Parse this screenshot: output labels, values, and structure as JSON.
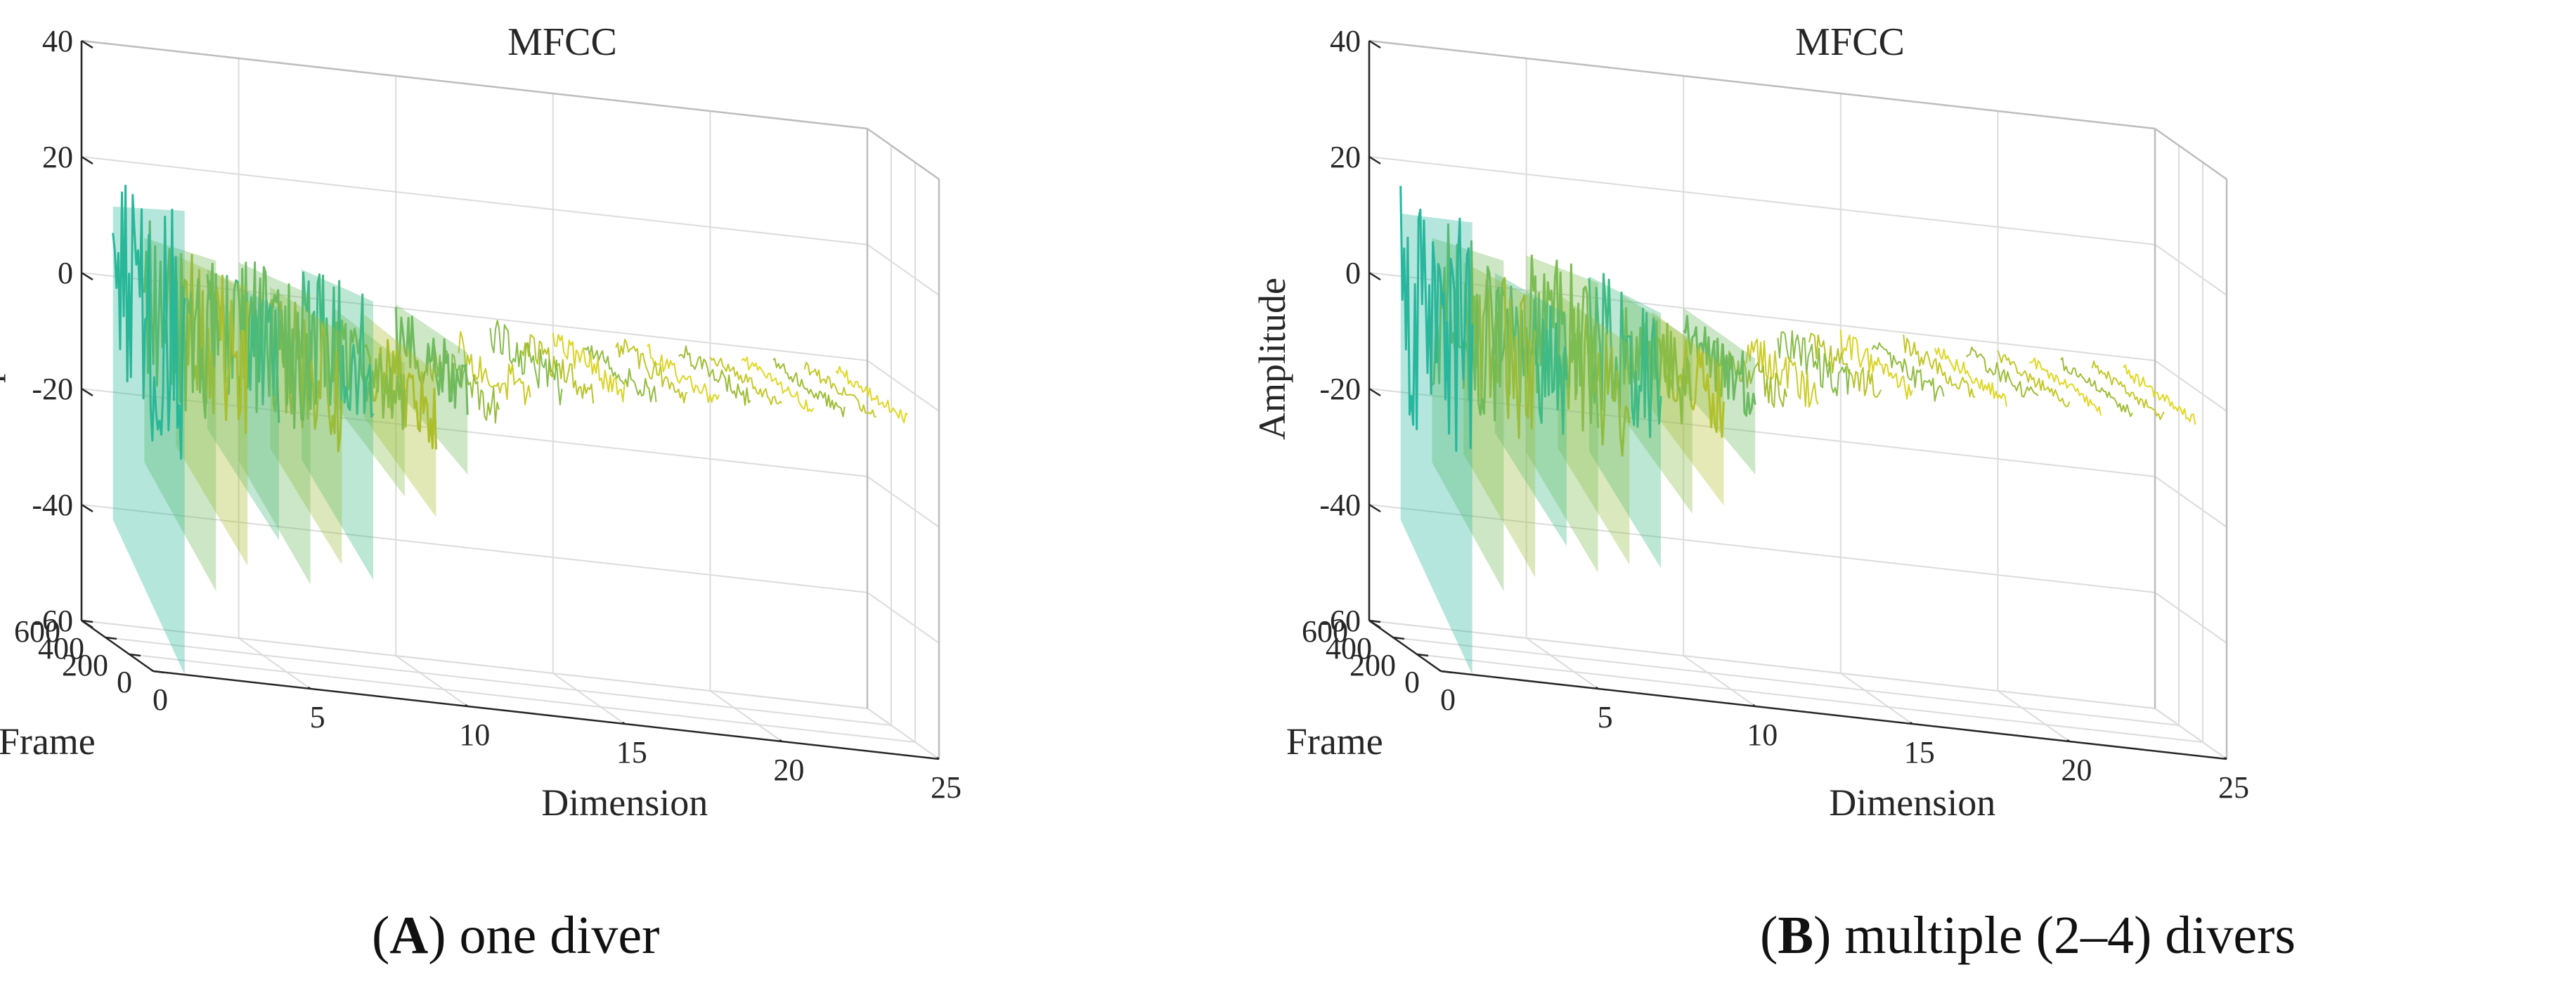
{
  "charts": [
    {
      "caption": {
        "letter": "A",
        "text": "one diver"
      },
      "chart_data": {
        "type": "surface3d",
        "title": "MFCC",
        "xlabel": "Dimension",
        "ylabel": "Frame",
        "zlabel": "Amplitude",
        "xlim": [
          0,
          25
        ],
        "ylim": [
          0,
          600
        ],
        "zlim": [
          -60,
          40
        ],
        "xticks": [
          "0",
          "5",
          "10",
          "15",
          "20",
          "25"
        ],
        "yticks": [
          "0",
          "200",
          "400",
          "600"
        ],
        "zticks": [
          "-60",
          "-40",
          "-20",
          "0",
          "20",
          "40"
        ],
        "grid": true,
        "colormap": "parula",
        "dimension_profile": {
          "dimension": [
            1,
            2,
            3,
            4,
            5,
            6,
            7,
            8,
            9,
            10,
            11,
            12,
            13,
            14,
            15,
            16,
            17,
            18,
            19,
            20,
            21,
            22,
            23,
            24
          ],
          "amplitude_max": [
            20,
            12,
            8,
            5,
            8,
            2,
            8,
            -2,
            -3,
            1,
            -4,
            -2,
            1,
            -1,
            0,
            -1,
            0,
            -1,
            0,
            -1,
            -1,
            -1,
            -1,
            -1
          ],
          "amplitude_min": [
            -60,
            -45,
            -40,
            -35,
            -42,
            -38,
            -40,
            -25,
            -28,
            -20,
            -18,
            -15,
            -13,
            -10,
            -9,
            -8,
            -7,
            -7,
            -6,
            -5,
            -5,
            -5,
            -5,
            -5
          ]
        }
      }
    },
    {
      "caption": {
        "letter": "B",
        "text": "multiple (2–4) divers"
      },
      "chart_data": {
        "type": "surface3d",
        "title": "MFCC",
        "xlabel": "Dimension",
        "ylabel": "Frame",
        "zlabel": "Amplitude",
        "xlim": [
          0,
          25
        ],
        "ylim": [
          0,
          600
        ],
        "zlim": [
          -60,
          40
        ],
        "xticks": [
          "0",
          "5",
          "10",
          "15",
          "20",
          "25"
        ],
        "yticks": [
          "0",
          "200",
          "400",
          "600"
        ],
        "zticks": [
          "-60",
          "-40",
          "-20",
          "0",
          "20",
          "40"
        ],
        "grid": true,
        "colormap": "parula",
        "dimension_profile": {
          "dimension": [
            1,
            2,
            3,
            4,
            5,
            6,
            7,
            8,
            9,
            10,
            11,
            12,
            13,
            14,
            15,
            16,
            17,
            18,
            19,
            20,
            21,
            22,
            23,
            24
          ],
          "amplitude_max": [
            18,
            12,
            6,
            4,
            10,
            0,
            6,
            2,
            -2,
            0,
            -3,
            -2,
            0,
            -1,
            0,
            -1,
            0,
            -1,
            0,
            -1,
            -1,
            -1,
            -1,
            -1
          ],
          "amplitude_min": [
            -60,
            -45,
            -42,
            -36,
            -40,
            -38,
            -38,
            -28,
            -26,
            -20,
            -16,
            -14,
            -12,
            -10,
            -9,
            -8,
            -7,
            -6,
            -6,
            -5,
            -5,
            -5,
            -5,
            -5
          ]
        }
      }
    }
  ]
}
